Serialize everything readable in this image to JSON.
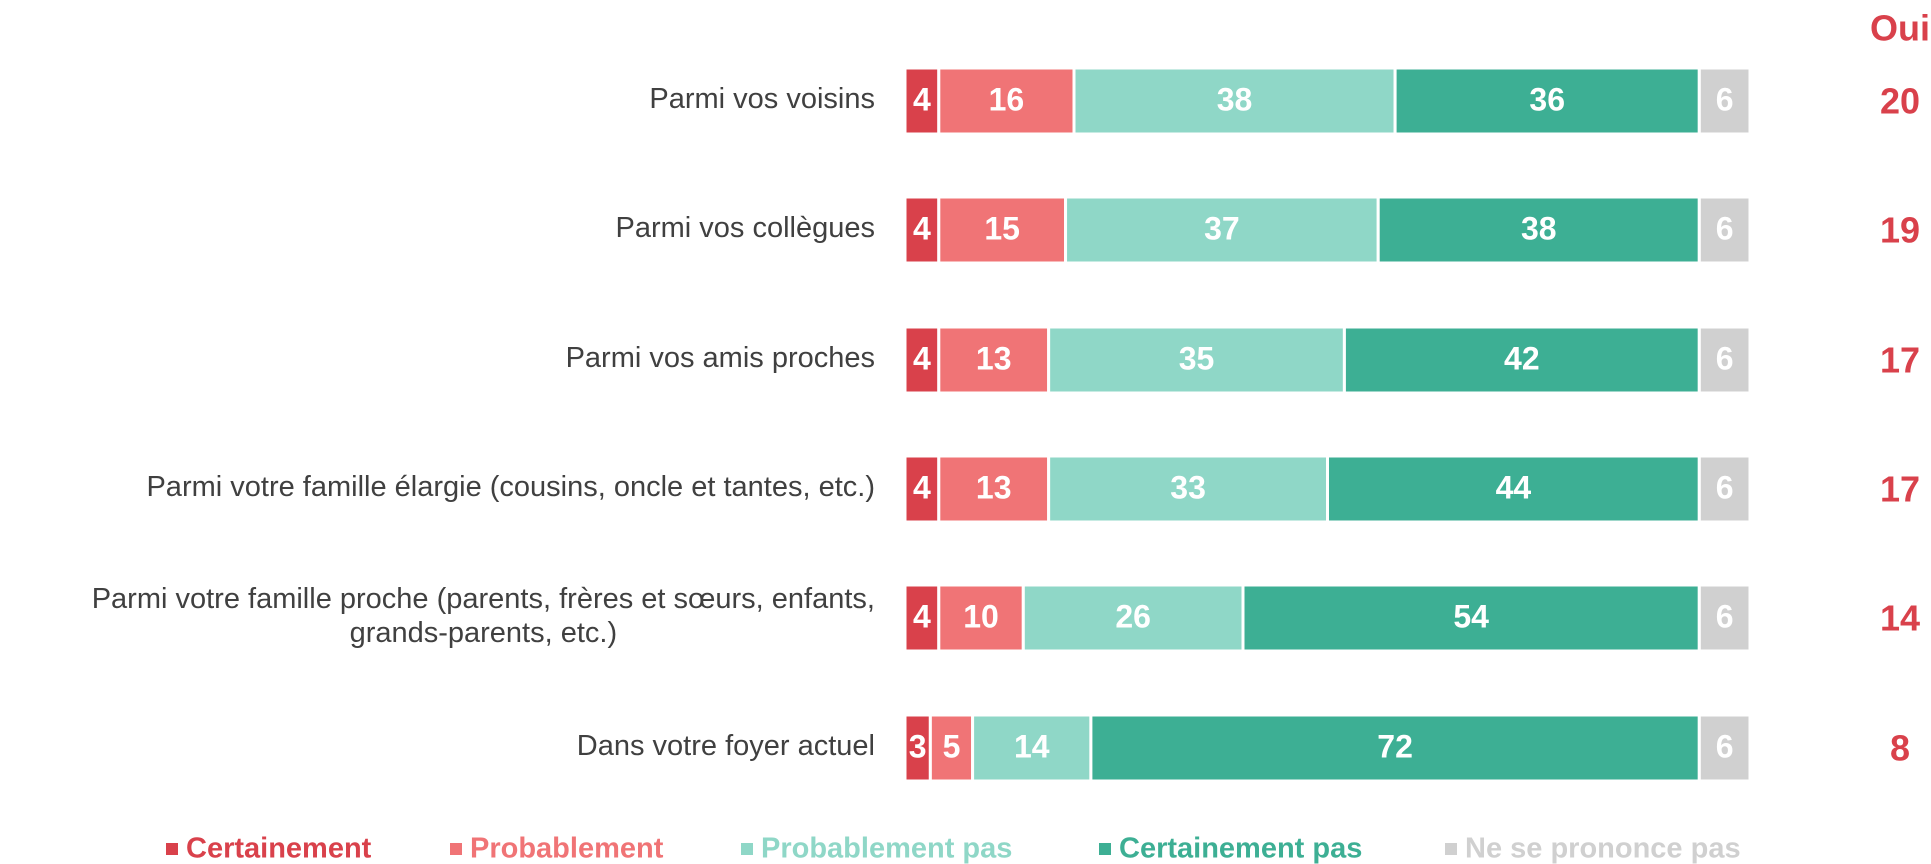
{
  "chart_data": {
    "type": "stacked_barh",
    "categories": [
      "Parmi vos voisins",
      "Parmi vos collègues",
      "Parmi vos amis proches",
      "Parmi votre famille élargie (cousins, oncle et tantes, etc.)",
      "Parmi votre famille proche (parents, frères et sœurs, enfants,\ngrands-parents, etc.)",
      "Dans votre foyer actuel"
    ],
    "series": [
      {
        "name": "Certainement",
        "color": "#d9414b",
        "values": [
          4,
          4,
          4,
          4,
          4,
          3
        ]
      },
      {
        "name": "Probablement",
        "color": "#f07476",
        "values": [
          16,
          15,
          13,
          13,
          10,
          5
        ]
      },
      {
        "name": "Probablement pas",
        "color": "#8fd7c7",
        "values": [
          38,
          37,
          35,
          33,
          26,
          14
        ]
      },
      {
        "name": "Certainement pas",
        "color": "#3daf94",
        "values": [
          36,
          38,
          42,
          44,
          54,
          72
        ]
      },
      {
        "name": "Ne se prononce pas",
        "color": "#d0d0d0",
        "values": [
          6,
          6,
          6,
          6,
          6,
          6
        ]
      }
    ],
    "xlim": [
      0,
      100
    ],
    "oui": {
      "title": "Oui",
      "color": "#d9414b",
      "values": [
        20,
        19,
        17,
        17,
        14,
        8
      ]
    }
  }
}
